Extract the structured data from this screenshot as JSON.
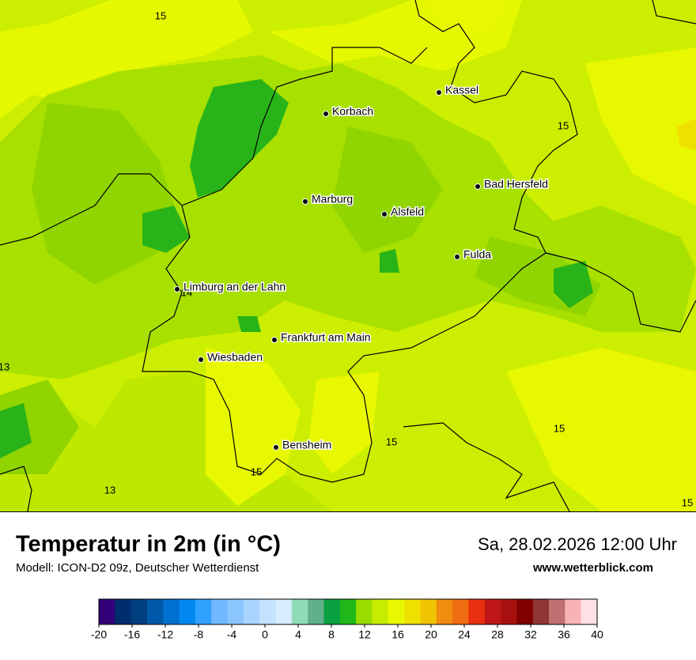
{
  "map": {
    "cities": [
      {
        "name": "Kassel"
      },
      {
        "name": "Korbach"
      },
      {
        "name": "Bad Hersfeld"
      },
      {
        "name": "Marburg"
      },
      {
        "name": "Alsfeld"
      },
      {
        "name": "Fulda"
      },
      {
        "name": "Limburg an der Lahn"
      },
      {
        "name": "Frankfurt am Main"
      },
      {
        "name": "Wiesbaden"
      },
      {
        "name": "Bensheim"
      }
    ],
    "contour_labels": [
      15,
      15,
      14,
      13,
      15,
      15,
      15,
      13,
      15
    ]
  },
  "footer": {
    "title": "Temperatur in 2m (in °C)",
    "model": "Modell: ICON-D2 09z, Deutscher Wetterdienst",
    "datetime": "Sa, 28.02.2026 12:00 Uhr",
    "website": "www.wetterblick.com"
  },
  "colorbar": {
    "ticks": [
      -20,
      -16,
      -12,
      -8,
      -4,
      0,
      4,
      8,
      12,
      16,
      20,
      24,
      28,
      32,
      36,
      40
    ],
    "colors": [
      "#33007a",
      "#002d6e",
      "#003f80",
      "#0058a8",
      "#0070d0",
      "#0088f0",
      "#30a0ff",
      "#70b8ff",
      "#8cc6ff",
      "#a8d4ff",
      "#c4e2ff",
      "#d8ecff",
      "#90dcb8",
      "#60b08c",
      "#08a040",
      "#20b818",
      "#98dc00",
      "#c8ec00",
      "#e8f800",
      "#f0e000",
      "#f0c400",
      "#f08c10",
      "#f06c10",
      "#e83010",
      "#c01818",
      "#a81010",
      "#800000",
      "#903434",
      "#c07070",
      "#f8b4b4",
      "#ffe0e4"
    ]
  }
}
